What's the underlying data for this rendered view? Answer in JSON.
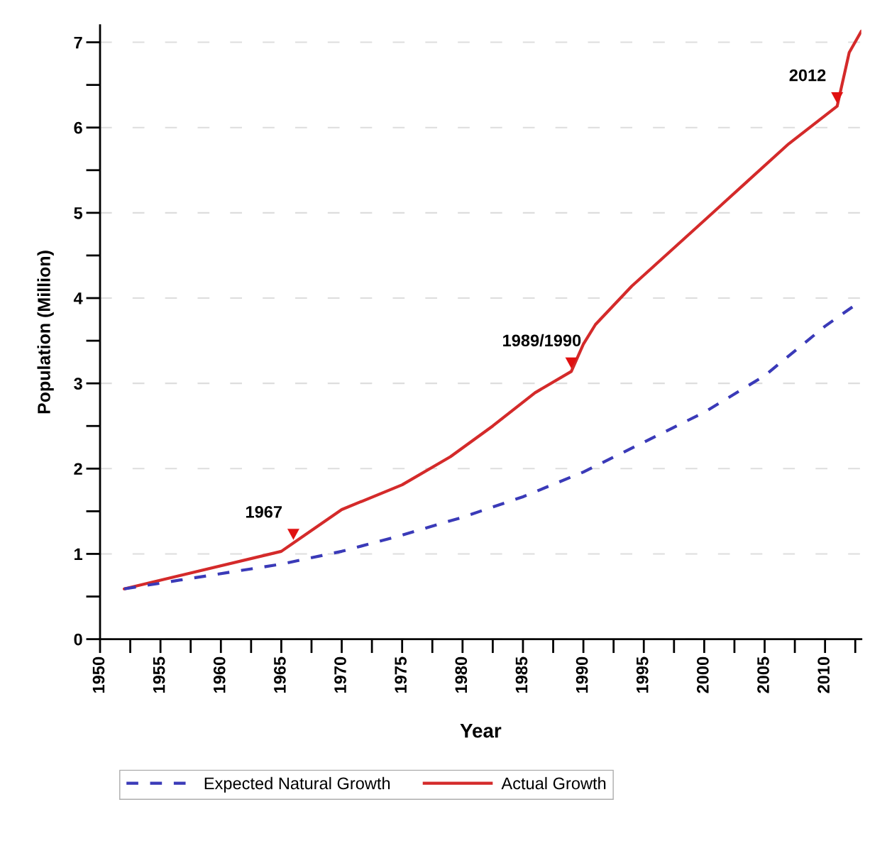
{
  "chart_data": {
    "type": "line",
    "xlabel": "Year",
    "ylabel": "Population (Million)",
    "series": [
      {
        "name": "Expected Natural Growth",
        "color": "#3a3ab8",
        "line_style": "dashed",
        "x": [
          1952,
          1965,
          1970,
          1975,
          1980,
          1985,
          1990,
          1995,
          2000,
          2005,
          2010,
          2013
        ],
        "values": [
          0.59,
          0.88,
          1.03,
          1.22,
          1.43,
          1.67,
          1.96,
          2.31,
          2.66,
          3.09,
          3.67,
          3.97
        ]
      },
      {
        "name": "Actual Growth",
        "color": "#d42a2a",
        "line_style": "solid",
        "x": [
          1952,
          1965,
          1970,
          1975,
          1979,
          1982.5,
          1986,
          1989,
          1990,
          1991,
          1994,
          2000,
          2003.5,
          2007,
          2011,
          2012,
          2013
        ],
        "values": [
          0.59,
          1.03,
          1.52,
          1.81,
          2.14,
          2.5,
          2.89,
          3.14,
          3.46,
          3.69,
          4.14,
          4.91,
          5.36,
          5.81,
          6.25,
          6.88,
          7.13
        ]
      }
    ],
    "annotations": [
      {
        "text": "1967",
        "x": 1966,
        "y": 1.13
      },
      {
        "text": "1989/1990",
        "x": 1989,
        "y": 3.14
      },
      {
        "text": "2012",
        "x": 2011,
        "y": 6.25
      }
    ],
    "xlim": [
      1950,
      2013
    ],
    "ylim": [
      0,
      7.2
    ],
    "xticks": [
      1950,
      1955,
      1960,
      1965,
      1970,
      1975,
      1980,
      1985,
      1990,
      1995,
      2000,
      2005,
      2010
    ],
    "yticks": [
      0,
      1,
      2,
      3,
      4,
      5,
      6,
      7
    ],
    "grid": "y",
    "legend": "bottom",
    "marker": "none"
  }
}
